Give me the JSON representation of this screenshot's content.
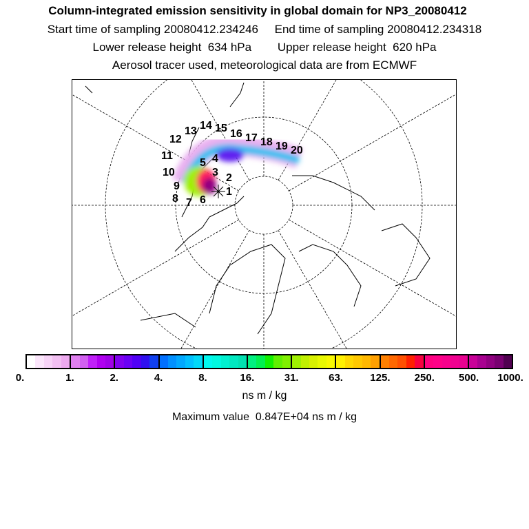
{
  "header": {
    "title": "Column-integrated emission sensitivity in global domain for NP3_20080412",
    "line2": "Start time of sampling 20080412.234246     End time of sampling 20080412.234318",
    "line3": "Lower release height  634 hPa        Upper release height  620 hPa",
    "line4": "Aerosol tracer used, meteorological data are from ECMWF"
  },
  "map": {
    "day_labels": [
      "1",
      "2",
      "3",
      "4",
      "5",
      "6",
      "7",
      "8",
      "9",
      "10",
      "11",
      "12",
      "13",
      "14",
      "15",
      "16",
      "17",
      "18",
      "19",
      "20"
    ],
    "release_marker": "star"
  },
  "colorbar": {
    "labels": [
      "0.",
      "1.",
      "2.",
      "4.",
      "8.",
      "16.",
      "31.",
      "63.",
      "125.",
      "250.",
      "500.",
      "1000."
    ],
    "segments": [
      [
        "#ffffff",
        "#fbe6fb",
        "#f7d3f7",
        "#f2bff2",
        "#eda9ef"
      ],
      [
        "#e080f0",
        "#d160f0",
        "#c020f8",
        "#b000f0",
        "#a000e8"
      ],
      [
        "#8000f0",
        "#6a00f5",
        "#5000f5",
        "#3010f0",
        "#1040f0"
      ],
      [
        "#0070ff",
        "#0090ff",
        "#00a8ff",
        "#00c0ff",
        "#00d8f8"
      ],
      [
        "#00f8f0",
        "#00f8e0",
        "#00f0d0",
        "#00e8c0",
        "#00e0b0"
      ],
      [
        "#00f080",
        "#00f050",
        "#10f000",
        "#60f000",
        "#80f000"
      ],
      [
        "#a0f000",
        "#c0f000",
        "#d8f000",
        "#e8f800",
        "#f8f800"
      ],
      [
        "#fff000",
        "#ffd800",
        "#ffc800",
        "#ffb800",
        "#ffa000"
      ],
      [
        "#ff8000",
        "#ff6800",
        "#ff5000",
        "#ff2000",
        "#f80040"
      ],
      [
        "#ff0080",
        "#ff0088",
        "#f8008c",
        "#f00090",
        "#e80090"
      ],
      [
        "#c80098",
        "#a80090",
        "#900080",
        "#780070",
        "#500050"
      ]
    ],
    "unit": "ns m / kg",
    "max_label": "Maximum value  0.847E+04 ns m / kg"
  }
}
